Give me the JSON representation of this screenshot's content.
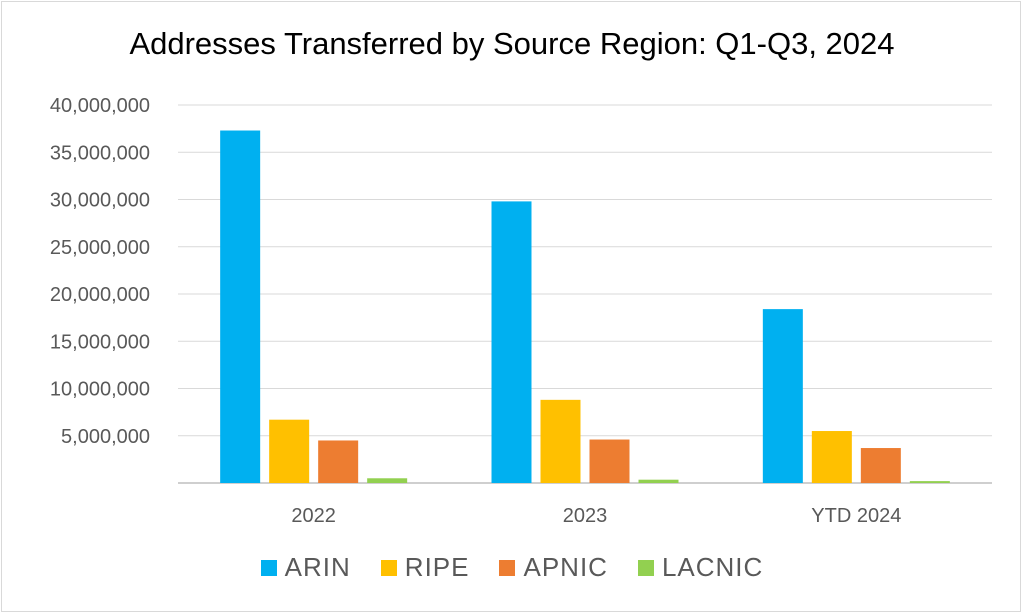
{
  "chart_data": {
    "type": "bar",
    "title": "Addresses Transferred by Source Region: Q1-Q3, 2024",
    "categories": [
      "2022",
      "2023",
      "YTD 2024"
    ],
    "series": [
      {
        "name": "ARIN",
        "color": "#00b0f0",
        "values": [
          37300000,
          29800000,
          18400000
        ]
      },
      {
        "name": "RIPE",
        "color": "#ffc000",
        "values": [
          6700000,
          8800000,
          5500000
        ]
      },
      {
        "name": "APNIC",
        "color": "#ed7d31",
        "values": [
          4500000,
          4600000,
          3700000
        ]
      },
      {
        "name": "LACNIC",
        "color": "#92d050",
        "values": [
          500000,
          350000,
          200000
        ]
      }
    ],
    "ylim": [
      0,
      40000000
    ],
    "y_ticks": [
      "",
      "5,000,000",
      "10,000,000",
      "15,000,000",
      "20,000,000",
      "25,000,000",
      "30,000,000",
      "35,000,000",
      "40,000,000"
    ],
    "grid": true,
    "legend_position": "bottom"
  }
}
